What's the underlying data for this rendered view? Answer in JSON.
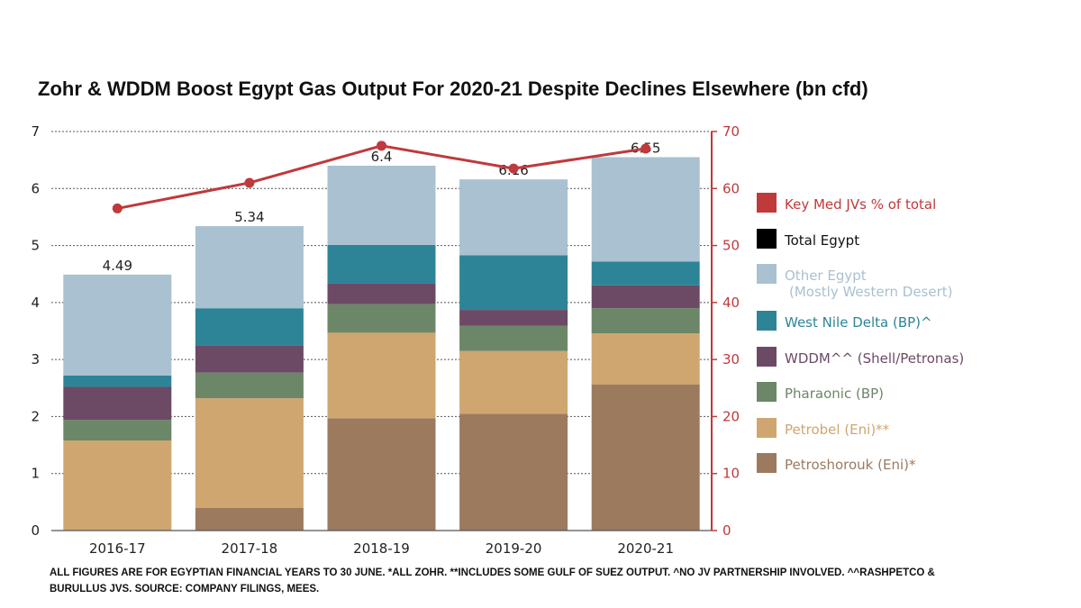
{
  "chart_data": {
    "type": "bar",
    "title": "Zohr & WDDM Boost Egypt Gas Output For 2020-21 Despite Declines Elsewhere (bn cfd)",
    "categories": [
      "2016-17",
      "2017-18",
      "2018-19",
      "2019-20",
      "2020-21"
    ],
    "ylim": [
      0,
      7
    ],
    "yticks": [
      "0",
      "1",
      "2",
      "3",
      "4",
      "5",
      "6",
      "7"
    ],
    "y2lim": [
      0,
      70
    ],
    "y2ticks": [
      "0",
      "10",
      "20",
      "30",
      "40",
      "50",
      "60",
      "70"
    ],
    "stacked": true,
    "series": [
      {
        "name": "Petroshorouk (Eni)*",
        "color": "#9c7a5e",
        "values": [
          0,
          0.4,
          1.97,
          2.05,
          2.56
        ]
      },
      {
        "name": "Petrobel (Eni)**",
        "color": "#cfa66f",
        "values": [
          1.58,
          1.92,
          1.5,
          1.1,
          0.9
        ]
      },
      {
        "name": "Pharaonic (BP)",
        "color": "#6c8768",
        "values": [
          0.36,
          0.45,
          0.5,
          0.44,
          0.44
        ]
      },
      {
        "name": "WDDM^^ (Shell/Petronas)",
        "color": "#6c4a66",
        "values": [
          0.58,
          0.48,
          0.36,
          0.28,
          0.4
        ]
      },
      {
        "name": "West Nile Delta (BP)^",
        "color": "#2e8497",
        "values": [
          0.2,
          0.65,
          0.68,
          0.96,
          0.42
        ]
      },
      {
        "name": "Other Egypt (Mostly Western Desert)",
        "color": "#a9c1d0",
        "values": [
          1.77,
          1.44,
          1.39,
          1.33,
          1.83
        ]
      }
    ],
    "totals": {
      "name": "Total Egypt",
      "color": "#000000",
      "values": [
        4.49,
        5.34,
        6.4,
        6.16,
        6.55
      ],
      "labels": [
        "4.49",
        "5.34",
        "6.4",
        "6.16",
        "6.55"
      ]
    },
    "line": {
      "name": "Key Med JVs % of total",
      "color": "#c0393b",
      "axis": "right",
      "values": [
        56.5,
        61,
        67.5,
        63.5,
        67
      ]
    },
    "legend": [
      {
        "name": "Key Med JVs % of total",
        "color": "#c0393b",
        "text_color": "#c0393b"
      },
      {
        "name": "Total Egypt",
        "color": "#000000",
        "text_color": "#111111"
      },
      {
        "name": "Other Egypt",
        "line2": "(Mostly Western Desert)",
        "color": "#a9c1d0",
        "text_color": "#a9c1d0"
      },
      {
        "name": "West Nile Delta (BP)^",
        "color": "#2e8497",
        "text_color": "#2e8497"
      },
      {
        "name": "WDDM^^ (Shell/Petronas)",
        "color": "#6c4a66",
        "text_color": "#6c4a66"
      },
      {
        "name": "Pharaonic (BP)",
        "color": "#6c8768",
        "text_color": "#6c8768"
      },
      {
        "name": "Petrobel (Eni)**",
        "color": "#cfa66f",
        "text_color": "#cfa66f"
      },
      {
        "name": "Petroshorouk (Eni)*",
        "color": "#9c7a5e",
        "text_color": "#9c7a5e"
      }
    ],
    "legend_position": "right",
    "grid": true
  },
  "footnote": {
    "line1": "ALL FIGURES ARE FOR EGYPTIAN FINANCIAL YEARS TO 30 JUNE. *ALL ZOHR. **INCLUDES SOME GULF OF SUEZ OUTPUT. ^NO JV PARTNERSHIP INVOLVED. ^^RASHPETCO &",
    "line2": "BURULLUS JVS. SOURCE: COMPANY FILINGS, MEES."
  }
}
